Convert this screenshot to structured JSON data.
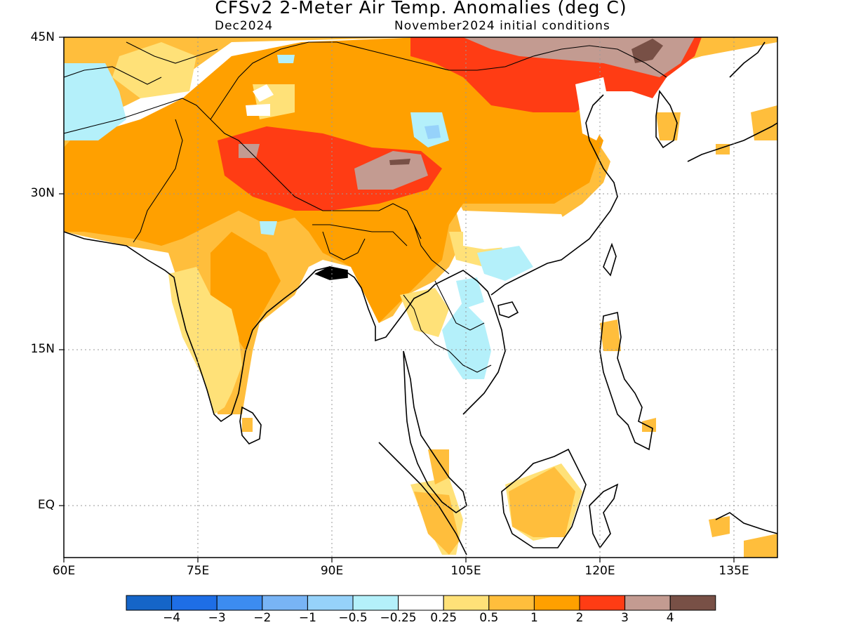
{
  "title": "CFSv2 2-Meter Air Temp. Anomalies (deg C)",
  "subtitle_left": "Dec2024",
  "subtitle_right": "November2024 initial conditions",
  "lat_labels": [
    "45N",
    "30N",
    "15N",
    "EQ"
  ],
  "lon_labels": [
    "60E",
    "75E",
    "90E",
    "105E",
    "120E",
    "135E"
  ],
  "colorbar": {
    "labels": [
      "-4",
      "-3",
      "-2",
      "-1",
      "-0.5",
      "-0.25",
      "0.25",
      "0.5",
      "1",
      "2",
      "3",
      "4"
    ],
    "colors": [
      "#1565c8",
      "#1e6ee6",
      "#3c8cf0",
      "#78b4f5",
      "#96d2fa",
      "#b4f0fa",
      "#ffffff",
      "#ffe178",
      "#ffbe3c",
      "#ffa000",
      "#ff3c14",
      "#c39b91",
      "#785046"
    ]
  },
  "map": {
    "lon_range": [
      60,
      140
    ],
    "lat_range": [
      -6,
      45
    ]
  }
}
